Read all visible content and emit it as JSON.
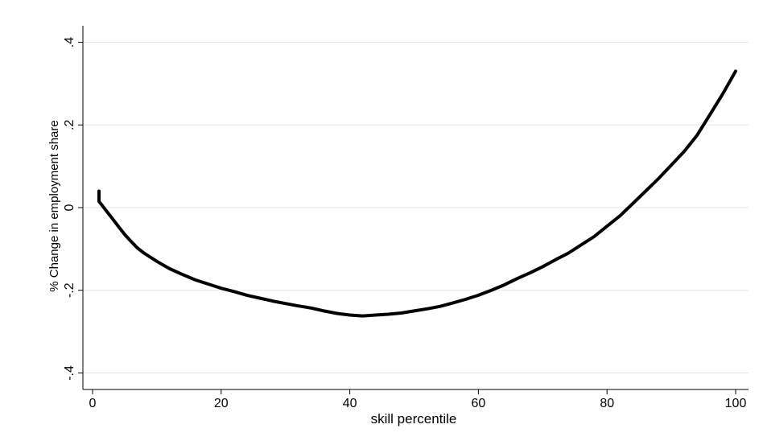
{
  "chart_data": {
    "type": "line",
    "title": "",
    "xlabel": "skill percentile",
    "ylabel": "% Change in employment share",
    "xlim": [
      -1.5,
      102
    ],
    "ylim": [
      -0.44,
      0.44
    ],
    "xticks": [
      0,
      20,
      40,
      60,
      80,
      100
    ],
    "xtick_labels": [
      "0",
      "20",
      "40",
      "60",
      "80",
      "100"
    ],
    "yticks": [
      -0.4,
      -0.2,
      0,
      0.2,
      0.4
    ],
    "ytick_labels": [
      "-.4",
      "-.2",
      "0",
      ".2",
      ".4"
    ],
    "grid": "horizontal",
    "legend": "none",
    "line_color": "#000000",
    "grid_color": "#e5e5e5",
    "series": [
      {
        "x": [
          1,
          1,
          1.5,
          2,
          3,
          4,
          5,
          6,
          7,
          8,
          10,
          12,
          14,
          16,
          18,
          19,
          20,
          22,
          24,
          26,
          28,
          30,
          32,
          34,
          36,
          38,
          40,
          42,
          44,
          46,
          48,
          50,
          52,
          54,
          56,
          58,
          60,
          62,
          64,
          66,
          68,
          70,
          72,
          74,
          76,
          78,
          80,
          82,
          84,
          86,
          88,
          90,
          92,
          94,
          96,
          98,
          100
        ],
        "y": [
          0.04,
          0.015,
          0.005,
          -0.005,
          -0.025,
          -0.045,
          -0.065,
          -0.082,
          -0.098,
          -0.11,
          -0.13,
          -0.148,
          -0.162,
          -0.175,
          -0.185,
          -0.19,
          -0.195,
          -0.203,
          -0.212,
          -0.219,
          -0.226,
          -0.232,
          -0.238,
          -0.243,
          -0.25,
          -0.256,
          -0.26,
          -0.262,
          -0.26,
          -0.258,
          -0.255,
          -0.25,
          -0.245,
          -0.239,
          -0.231,
          -0.222,
          -0.212,
          -0.2,
          -0.187,
          -0.172,
          -0.158,
          -0.143,
          -0.126,
          -0.11,
          -0.09,
          -0.07,
          -0.045,
          -0.02,
          0.01,
          0.04,
          0.07,
          0.103,
          0.136,
          0.175,
          0.225,
          0.275,
          0.33
        ]
      }
    ]
  }
}
